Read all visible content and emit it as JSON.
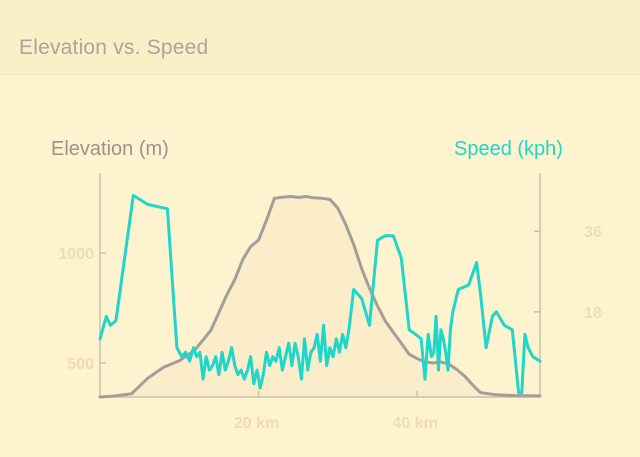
{
  "header": {
    "title": "Elevation vs. Speed"
  },
  "colors": {
    "background": "#fcf3cf",
    "elevation": "#a39e97",
    "speed": "#1ed6c9",
    "axis": "#c8c1aa",
    "tick_text": "#f0dcb0",
    "area_fill": "#fbedca"
  },
  "chart_data": {
    "type": "line",
    "title": "Elevation vs. Speed",
    "x_unit": "km",
    "xlim": [
      0,
      55.5
    ],
    "x_ticks": [
      20,
      40
    ],
    "x_tick_labels": [
      "20 km",
      "40 km"
    ],
    "y_left": {
      "label": "Elevation (m)",
      "lim": [
        345,
        1365
      ],
      "ticks": [
        500,
        1000
      ],
      "tick_labels": [
        "500",
        "1000"
      ]
    },
    "y_right": {
      "label": "Speed (kph)",
      "lim": [
        -1,
        49
      ],
      "ticks": [
        18,
        36
      ],
      "tick_labels": [
        "18",
        "36"
      ]
    },
    "grid": false,
    "series": [
      {
        "name": "Elevation (m)",
        "axis": "left",
        "x": [
          0,
          2,
          4,
          6,
          8,
          10,
          12,
          14,
          15,
          16,
          17,
          18,
          19,
          20,
          21,
          22,
          23,
          24,
          25,
          26,
          27,
          28,
          29,
          30,
          31,
          32,
          33,
          34,
          35,
          36,
          37,
          38,
          39,
          40,
          41,
          42,
          43,
          44,
          45,
          46,
          47,
          48,
          50,
          52,
          55.5
        ],
        "values": [
          345,
          350,
          360,
          430,
          480,
          510,
          560,
          650,
          730,
          810,
          880,
          970,
          1030,
          1060,
          1150,
          1250,
          1255,
          1258,
          1254,
          1258,
          1252,
          1250,
          1245,
          1205,
          1130,
          1040,
          930,
          840,
          760,
          690,
          640,
          590,
          540,
          520,
          505,
          500,
          505,
          495,
          470,
          440,
          400,
          365,
          355,
          352,
          350
        ]
      },
      {
        "name": "Speed (kph)",
        "axis": "right",
        "x": [
          0,
          0.8,
          1.3,
          2,
          4.2,
          6,
          8.5,
          9.7,
          10.3,
          10.8,
          11.3,
          11.8,
          12.2,
          12.6,
          13,
          13.4,
          13.8,
          14.2,
          14.6,
          15,
          15.4,
          15.8,
          16.2,
          16.6,
          17,
          17.4,
          17.8,
          18.2,
          18.6,
          19,
          19.4,
          19.8,
          20.2,
          20.6,
          21,
          21.4,
          21.8,
          22.2,
          22.6,
          23,
          23.4,
          23.8,
          24.2,
          24.6,
          25,
          25.4,
          25.8,
          26.2,
          26.6,
          27,
          27.4,
          27.8,
          28.2,
          28.6,
          29,
          29.4,
          29.8,
          30.2,
          30.6,
          31,
          31.4,
          32,
          33,
          34,
          35,
          36,
          37,
          38,
          39,
          39.8,
          40.5,
          41,
          41.4,
          41.8,
          42.1,
          42.4,
          42.7,
          43,
          43.3,
          43.6,
          43.9,
          44.2,
          44.5,
          45.2,
          46.5,
          47.5,
          48,
          48.7,
          49.5,
          50,
          51,
          52,
          52.8,
          53.2,
          53.6,
          54,
          54.6,
          55.5
        ],
        "values": [
          12,
          17,
          15,
          16,
          44,
          42,
          41,
          10,
          8,
          9,
          7,
          10,
          8,
          9,
          3,
          8,
          5,
          6,
          8,
          4,
          9,
          5,
          7,
          10,
          6,
          4,
          5,
          3,
          5,
          8,
          2,
          5,
          1,
          4,
          9,
          6,
          8,
          7,
          10,
          5,
          8,
          11,
          6,
          11,
          8,
          3,
          12,
          5,
          9,
          10,
          13,
          7,
          15,
          6,
          10,
          8,
          12,
          9,
          13,
          10,
          14,
          23,
          21,
          15,
          34,
          35,
          35,
          30,
          14,
          13,
          12,
          3,
          13,
          8,
          9,
          17,
          5,
          14,
          12,
          9,
          5,
          14,
          18,
          23,
          24,
          29,
          22,
          10,
          17,
          18,
          15,
          14,
          0,
          0,
          13,
          10,
          8,
          7
        ]
      }
    ]
  }
}
